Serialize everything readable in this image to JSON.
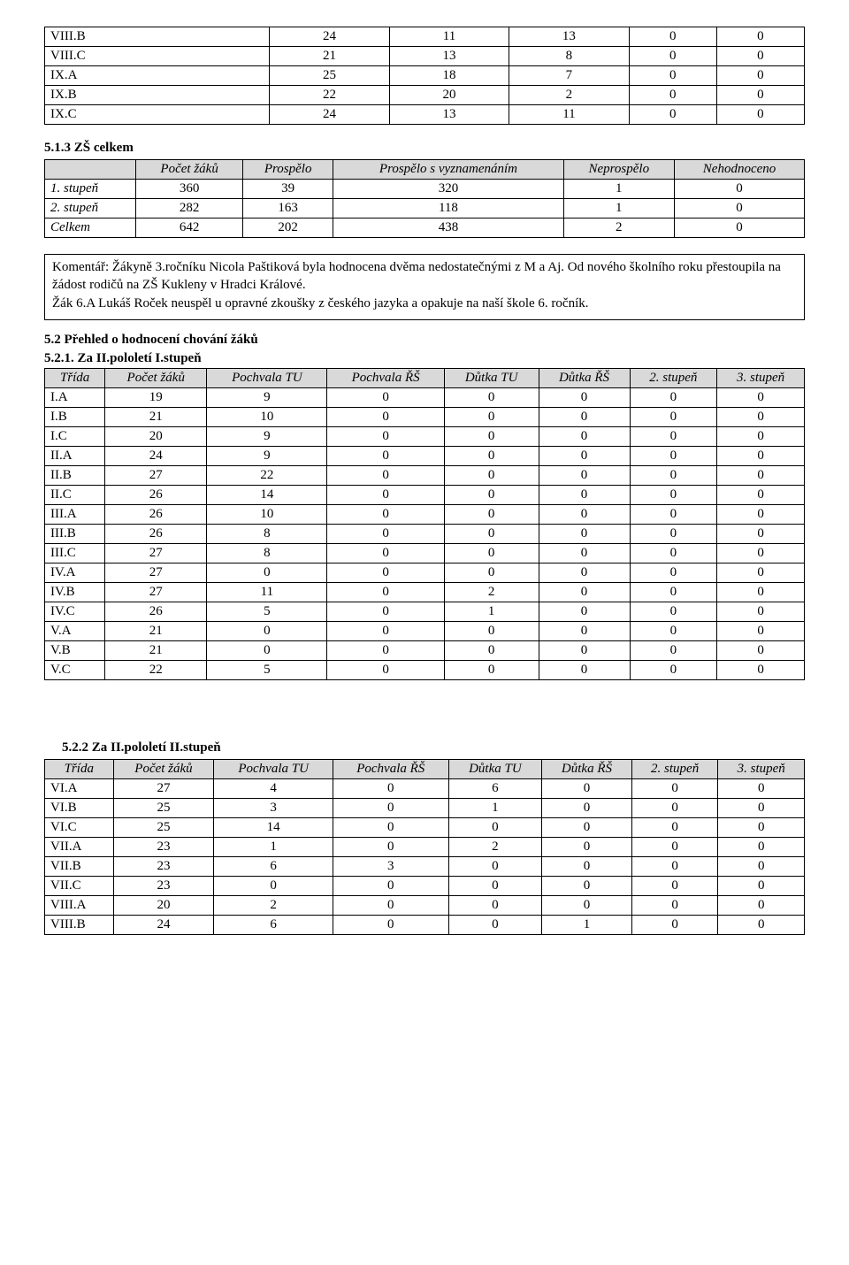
{
  "table1": {
    "rows": [
      [
        "VIII.B",
        24,
        11,
        13,
        0,
        0
      ],
      [
        "VIII.C",
        21,
        13,
        8,
        0,
        0
      ],
      [
        "IX.A",
        25,
        18,
        7,
        0,
        0
      ],
      [
        "IX.B",
        22,
        20,
        2,
        0,
        0
      ],
      [
        "IX.C",
        24,
        13,
        11,
        0,
        0
      ]
    ]
  },
  "section513": {
    "heading": "5.1.3 ZŠ celkem",
    "headers": [
      "",
      "Počet žáků",
      "Prospělo",
      "Prospělo s vyznamenáním",
      "Neprospělo",
      "Nehodnoceno"
    ],
    "rows": [
      [
        "1. stupeň",
        360,
        39,
        320,
        1,
        0
      ],
      [
        "2. stupeň",
        282,
        163,
        118,
        1,
        0
      ],
      [
        "Celkem",
        642,
        202,
        438,
        2,
        0
      ]
    ]
  },
  "commentary": {
    "line1": "Komentář: Žákyně 3.ročníku Nicola Paštiková byla hodnocena  dvěma nedostatečnými z M a Aj. Od nového školního roku přestoupila na žádost rodičů na ZŠ Kukleny v Hradci Králové.",
    "line2": "Žák 6.A Lukáš Roček neuspěl u opravné zkoušky z českého jazyka a opakuje na naší škole 6. ročník."
  },
  "section52": {
    "heading": "5.2 Přehled o hodnocení chování žáků",
    "sub1": "5.2.1. Za II.pololetí I.stupeň",
    "headers": [
      "Třída",
      "Počet žáků",
      "Pochvala TU",
      "Pochvala ŘŠ",
      "Důtka TU",
      "Důtka ŘŠ",
      "2. stupeň",
      "3. stupeň"
    ],
    "rows": [
      [
        "I.A",
        19,
        9,
        0,
        0,
        0,
        0,
        0
      ],
      [
        "I.B",
        21,
        10,
        0,
        0,
        0,
        0,
        0
      ],
      [
        "I.C",
        20,
        9,
        0,
        0,
        0,
        0,
        0
      ],
      [
        "II.A",
        24,
        9,
        0,
        0,
        0,
        0,
        0
      ],
      [
        "II.B",
        27,
        22,
        0,
        0,
        0,
        0,
        0
      ],
      [
        "II.C",
        26,
        14,
        0,
        0,
        0,
        0,
        0
      ],
      [
        "III.A",
        26,
        10,
        0,
        0,
        0,
        0,
        0
      ],
      [
        "III.B",
        26,
        8,
        0,
        0,
        0,
        0,
        0
      ],
      [
        "III.C",
        27,
        8,
        0,
        0,
        0,
        0,
        0
      ],
      [
        "IV.A",
        27,
        0,
        0,
        0,
        0,
        0,
        0
      ],
      [
        "IV.B",
        27,
        11,
        0,
        2,
        0,
        0,
        0
      ],
      [
        "IV.C",
        26,
        5,
        0,
        1,
        0,
        0,
        0
      ],
      [
        "V.A",
        21,
        0,
        0,
        0,
        0,
        0,
        0
      ],
      [
        "V.B",
        21,
        0,
        0,
        0,
        0,
        0,
        0
      ],
      [
        "V.C",
        22,
        5,
        0,
        0,
        0,
        0,
        0
      ]
    ]
  },
  "section522": {
    "heading": "5.2.2   Za II.pololetí II.stupeň",
    "headers": [
      "Třída",
      "Počet žáků",
      "Pochvala TU",
      "Pochvala ŘŠ",
      "Důtka TU",
      "Důtka ŘŠ",
      "2. stupeň",
      "3. stupeň"
    ],
    "rows": [
      [
        "VI.A",
        27,
        4,
        0,
        6,
        0,
        0,
        0
      ],
      [
        "VI.B",
        25,
        3,
        0,
        1,
        0,
        0,
        0
      ],
      [
        "VI.C",
        25,
        14,
        0,
        0,
        0,
        0,
        0
      ],
      [
        "VII.A",
        23,
        1,
        0,
        2,
        0,
        0,
        0
      ],
      [
        "VII.B",
        23,
        6,
        3,
        0,
        0,
        0,
        0
      ],
      [
        "VII.C",
        23,
        0,
        0,
        0,
        0,
        0,
        0
      ],
      [
        "VIII.A",
        20,
        2,
        0,
        0,
        0,
        0,
        0
      ],
      [
        "VIII.B",
        24,
        6,
        0,
        0,
        1,
        0,
        0
      ]
    ]
  }
}
